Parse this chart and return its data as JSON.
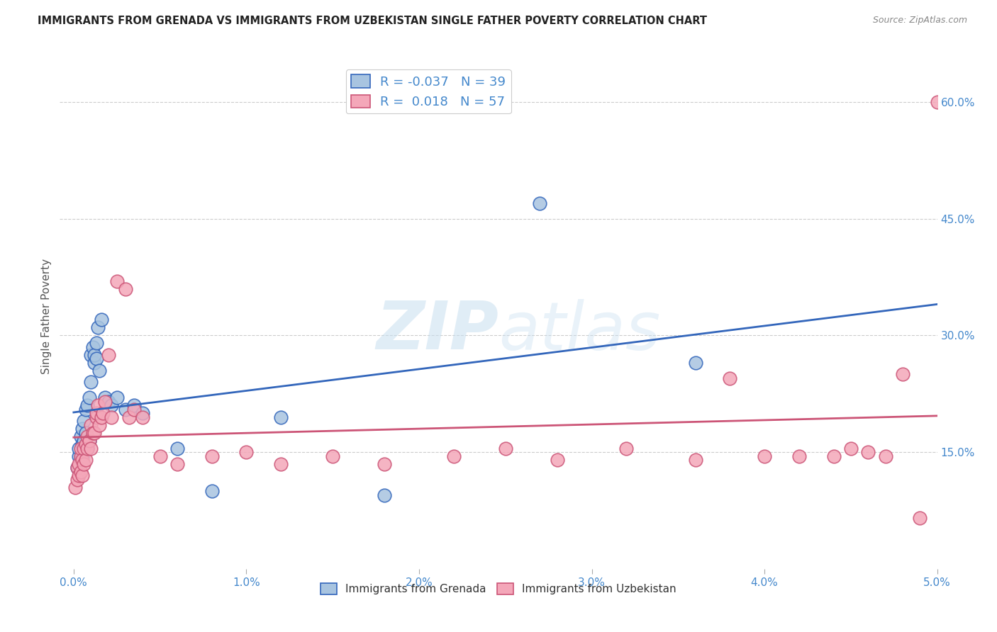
{
  "title": "IMMIGRANTS FROM GRENADA VS IMMIGRANTS FROM UZBEKISTAN SINGLE FATHER POVERTY CORRELATION CHART",
  "source": "Source: ZipAtlas.com",
  "ylabel": "Single Father Poverty",
  "legend_label1": "Immigrants from Grenada",
  "legend_label2": "Immigrants from Uzbekistan",
  "R1": -0.037,
  "N1": 39,
  "R2": 0.018,
  "N2": 57,
  "color_grenada": "#a8c4e0",
  "color_uzbekistan": "#f4a7b9",
  "line_color_grenada": "#3366bb",
  "line_color_uzbekistan": "#cc5577",
  "background_color": "#ffffff",
  "watermark_zip": "ZIP",
  "watermark_atlas": "atlas",
  "xmin": 0.0,
  "xmax": 0.05,
  "ymin": 0.0,
  "ymax": 0.65,
  "xticks": [
    0.0,
    0.01,
    0.02,
    0.03,
    0.04,
    0.05
  ],
  "xticklabels": [
    "0.0%",
    "1.0%",
    "2.0%",
    "3.0%",
    "4.0%",
    "5.0%"
  ],
  "yticks": [
    0.15,
    0.3,
    0.45,
    0.6
  ],
  "yticklabels": [
    "15.0%",
    "30.0%",
    "45.0%",
    "60.0%"
  ],
  "grenada_x": [
    0.0002,
    0.0003,
    0.0003,
    0.0004,
    0.0004,
    0.0005,
    0.0005,
    0.0005,
    0.0006,
    0.0006,
    0.0007,
    0.0007,
    0.0008,
    0.0008,
    0.0009,
    0.0009,
    0.001,
    0.001,
    0.0011,
    0.0012,
    0.0012,
    0.0013,
    0.0013,
    0.0014,
    0.0015,
    0.0016,
    0.0018,
    0.002,
    0.0022,
    0.0025,
    0.003,
    0.0035,
    0.004,
    0.006,
    0.008,
    0.012,
    0.018,
    0.027,
    0.036
  ],
  "grenada_y": [
    0.13,
    0.145,
    0.155,
    0.14,
    0.17,
    0.145,
    0.16,
    0.18,
    0.165,
    0.19,
    0.175,
    0.205,
    0.155,
    0.21,
    0.22,
    0.165,
    0.24,
    0.275,
    0.285,
    0.265,
    0.275,
    0.27,
    0.29,
    0.31,
    0.255,
    0.32,
    0.22,
    0.215,
    0.21,
    0.22,
    0.205,
    0.21,
    0.2,
    0.155,
    0.1,
    0.195,
    0.095,
    0.47,
    0.265
  ],
  "uzbekistan_x": [
    0.0001,
    0.0002,
    0.0002,
    0.0003,
    0.0003,
    0.0004,
    0.0004,
    0.0004,
    0.0005,
    0.0005,
    0.0006,
    0.0006,
    0.0007,
    0.0007,
    0.0008,
    0.0008,
    0.0009,
    0.001,
    0.001,
    0.0011,
    0.0012,
    0.0013,
    0.0013,
    0.0014,
    0.0015,
    0.0016,
    0.0017,
    0.0018,
    0.002,
    0.0022,
    0.0025,
    0.003,
    0.0032,
    0.0035,
    0.004,
    0.005,
    0.006,
    0.008,
    0.01,
    0.012,
    0.015,
    0.018,
    0.022,
    0.025,
    0.028,
    0.032,
    0.036,
    0.038,
    0.04,
    0.042,
    0.044,
    0.045,
    0.046,
    0.047,
    0.048,
    0.049,
    0.05
  ],
  "uzbekistan_y": [
    0.105,
    0.115,
    0.13,
    0.12,
    0.135,
    0.125,
    0.145,
    0.155,
    0.12,
    0.14,
    0.135,
    0.155,
    0.14,
    0.16,
    0.155,
    0.17,
    0.165,
    0.155,
    0.185,
    0.175,
    0.175,
    0.195,
    0.2,
    0.21,
    0.185,
    0.195,
    0.2,
    0.215,
    0.275,
    0.195,
    0.37,
    0.36,
    0.195,
    0.205,
    0.195,
    0.145,
    0.135,
    0.145,
    0.15,
    0.135,
    0.145,
    0.135,
    0.145,
    0.155,
    0.14,
    0.155,
    0.14,
    0.245,
    0.145,
    0.145,
    0.145,
    0.155,
    0.15,
    0.145,
    0.25,
    0.065,
    0.6
  ]
}
